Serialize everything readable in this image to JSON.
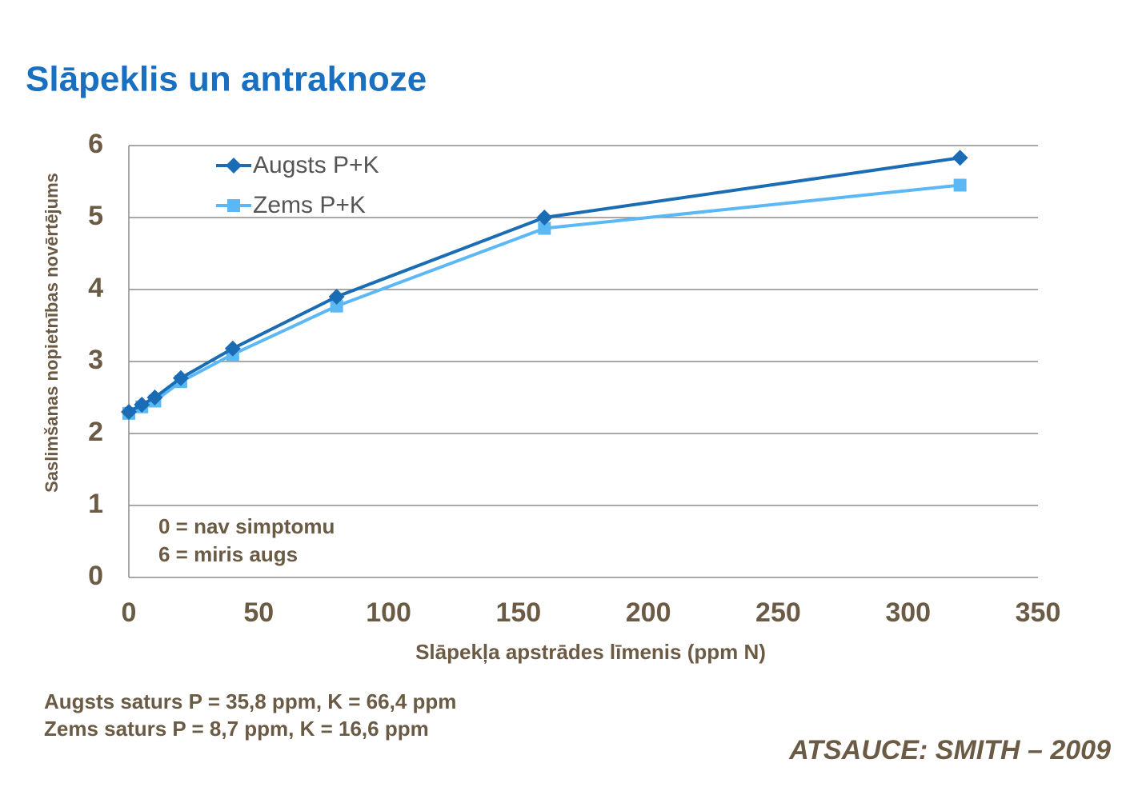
{
  "chart_data": {
    "type": "line",
    "title": "Slāpeklis un antraknoze",
    "y_label": "Saslimšanas  nopietnības novērtējums",
    "x_label": "Slāpekļa  apstrādes  līmenis (ppm N)",
    "x": [
      0,
      5,
      10,
      20,
      40,
      80,
      160,
      320
    ],
    "series": [
      {
        "name": "Augsts P+K",
        "color": "#1a6db5",
        "marker": "diamond",
        "values": [
          2.3,
          2.4,
          2.5,
          2.77,
          3.18,
          3.9,
          5.0,
          5.83
        ]
      },
      {
        "name": "Zems P+K",
        "color": "#5bb8f5",
        "marker": "square",
        "values": [
          2.28,
          2.37,
          2.45,
          2.72,
          3.1,
          3.77,
          4.85,
          5.45
        ]
      }
    ],
    "xlim": [
      0,
      350
    ],
    "xticks": [
      0,
      50,
      100,
      150,
      200,
      250,
      300,
      350
    ],
    "ylim": [
      0,
      6
    ],
    "yticks": [
      0,
      1,
      2,
      3,
      4,
      5,
      6
    ],
    "grid": true,
    "legend": "top-left",
    "annotations": [
      "0 = nav simptomu",
      "6 = miris augs"
    ],
    "footnotes": [
      "Augsts saturs P = 35,8 ppm, K = 66,4 ppm",
      "Zems saturs P = 8,7 ppm, K = 16,6 ppm"
    ],
    "source": "ATSAUCE: SMITH – 2009"
  }
}
